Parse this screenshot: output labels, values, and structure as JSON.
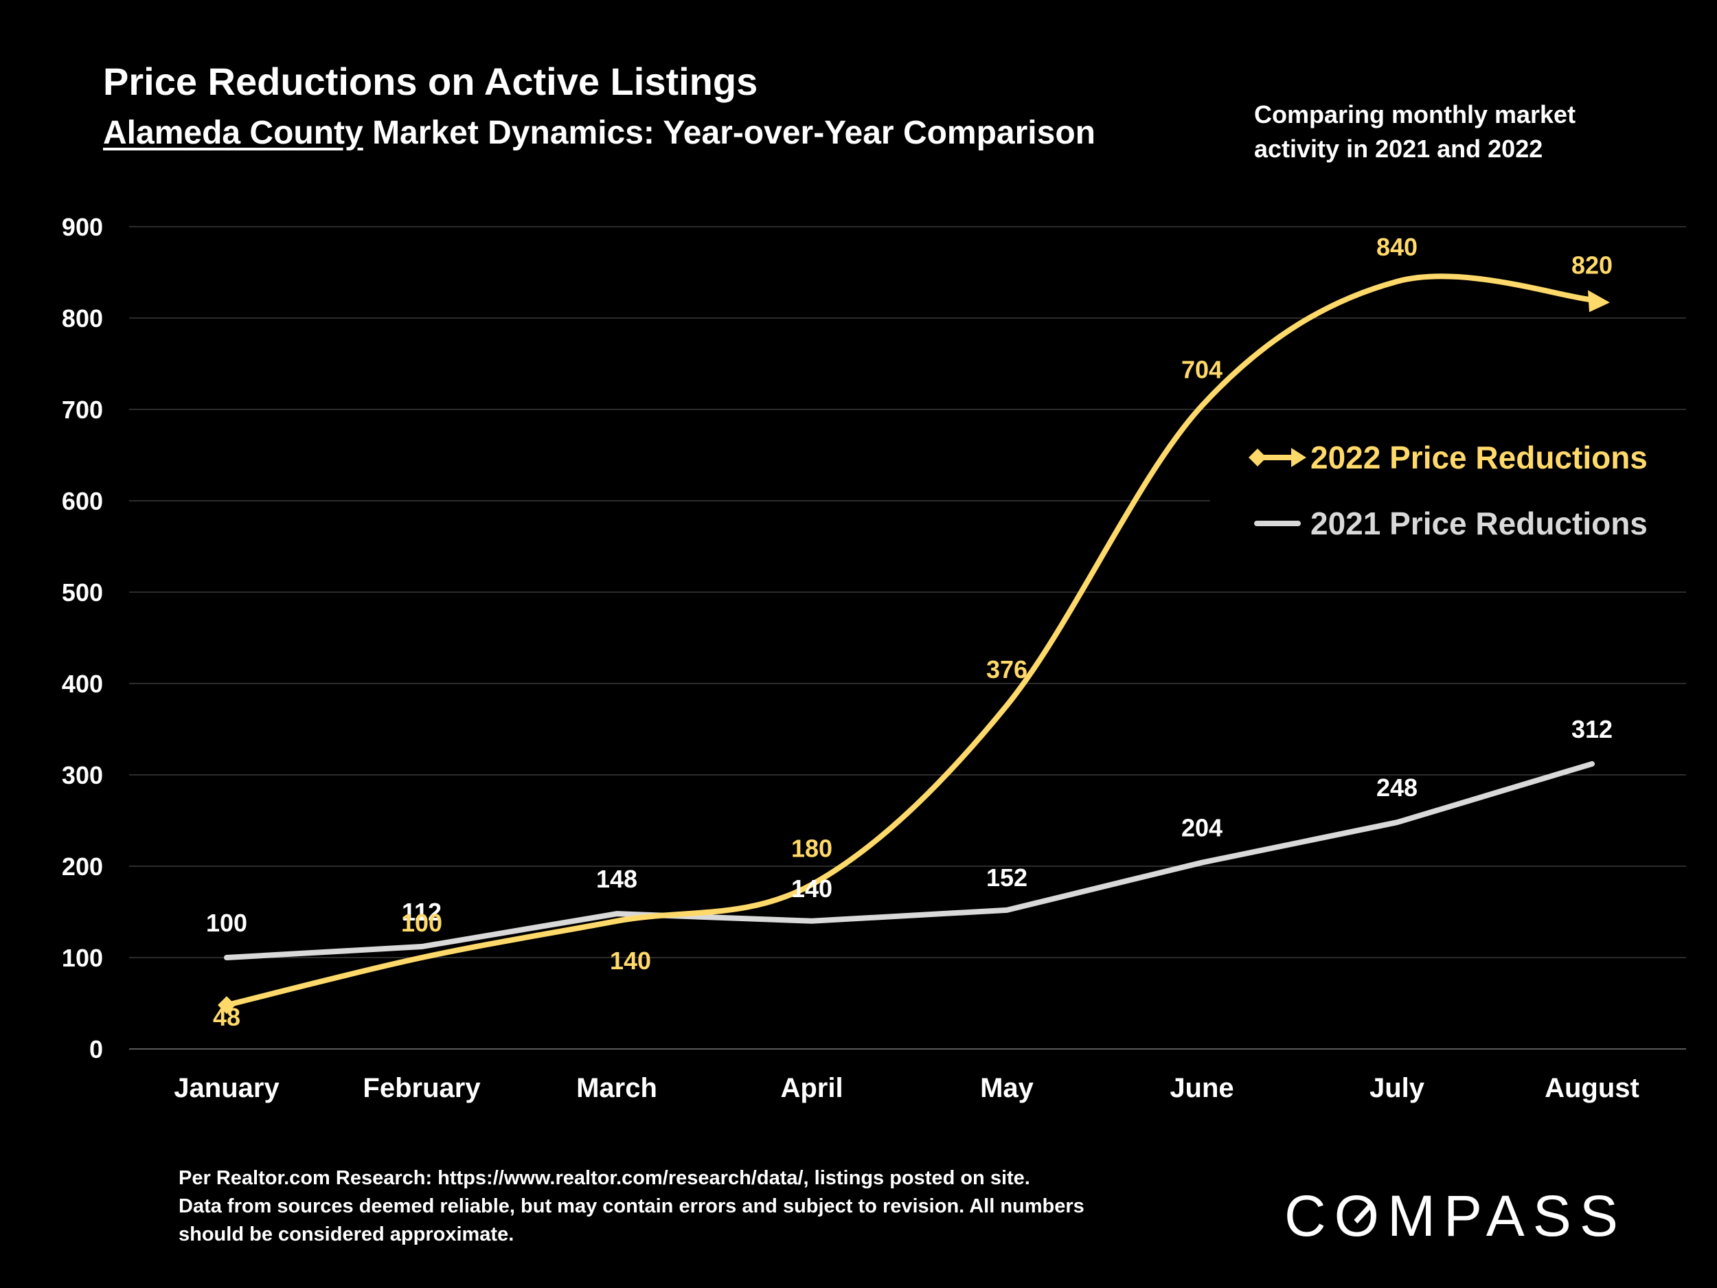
{
  "header": {
    "title": "Price Reductions on Active Listings",
    "subtitle_county": "Alameda County",
    "subtitle_rest": " Market Dynamics: Year-over-Year Comparison",
    "note": "Comparing monthly market activity in 2021 and 2022"
  },
  "chart_data": {
    "type": "line",
    "categories": [
      "January",
      "February",
      "March",
      "April",
      "May",
      "June",
      "July",
      "August"
    ],
    "ylim": [
      0,
      900
    ],
    "yticks": [
      0,
      100,
      200,
      300,
      400,
      500,
      600,
      700,
      800,
      900
    ],
    "grid": true,
    "legend_position": "right",
    "series": [
      {
        "name": "2022 Price Reductions",
        "color": "#ffd96a",
        "values": [
          48,
          100,
          140,
          180,
          376,
          704,
          840,
          820
        ],
        "smooth": true,
        "markers": "diamond-start-arrow-end"
      },
      {
        "name": "2021 Price Reductions",
        "color": "#d9d9d9",
        "values": [
          100,
          112,
          148,
          140,
          152,
          204,
          248,
          312
        ],
        "smooth": false
      }
    ]
  },
  "footer": {
    "line1": "Per Realtor.com Research: https://www.realtor.com/research/data/, listings posted on site.",
    "line2": "Data from sources deemed reliable, but may contain errors and subject to revision. All numbers",
    "line3": "should be considered approximate."
  },
  "logo": {
    "part1": "C",
    "part2": "O",
    "part3": "MPASS"
  }
}
